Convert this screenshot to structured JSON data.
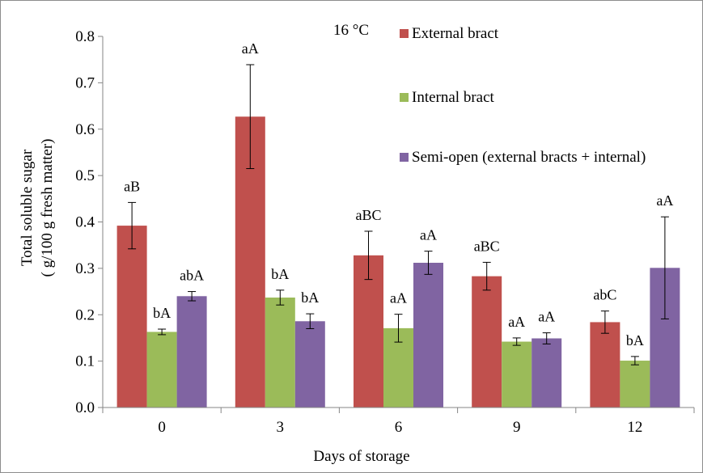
{
  "chart_data": {
    "type": "bar",
    "annotation": "16 °C",
    "xlabel": "Days of storage",
    "ylabel": [
      "Total soluble sugar",
      "( g/100 g fresh matter)"
    ],
    "categories": [
      "0",
      "3",
      "6",
      "9",
      "12"
    ],
    "ylim": [
      0,
      0.8
    ],
    "yticks": [
      "0.0",
      "0.1",
      "0.2",
      "0.3",
      "0.4",
      "0.5",
      "0.6",
      "0.7",
      "0.8"
    ],
    "grid": false,
    "legend_position": "right",
    "series": [
      {
        "name": "External bract",
        "color": "#c0504d",
        "values": [
          0.392,
          0.627,
          0.328,
          0.283,
          0.184
        ],
        "errors": [
          0.05,
          0.112,
          0.052,
          0.03,
          0.024
        ],
        "labels": [
          "aB",
          "aA",
          "aBC",
          "aBC",
          "abC"
        ]
      },
      {
        "name": "Internal bract",
        "color": "#9bbb59",
        "values": [
          0.163,
          0.237,
          0.171,
          0.142,
          0.101
        ],
        "errors": [
          0.006,
          0.016,
          0.03,
          0.008,
          0.009
        ],
        "labels": [
          "bA",
          "bA",
          "aA",
          "aA",
          "bA"
        ]
      },
      {
        "name": "Semi-open (external bracts + internal)",
        "color": "#8064a2",
        "values": [
          0.24,
          0.186,
          0.312,
          0.149,
          0.301
        ],
        "errors": [
          0.01,
          0.016,
          0.025,
          0.012,
          0.11
        ],
        "labels": [
          "abA",
          "bA",
          "aA",
          "aA",
          "aA"
        ]
      }
    ]
  }
}
